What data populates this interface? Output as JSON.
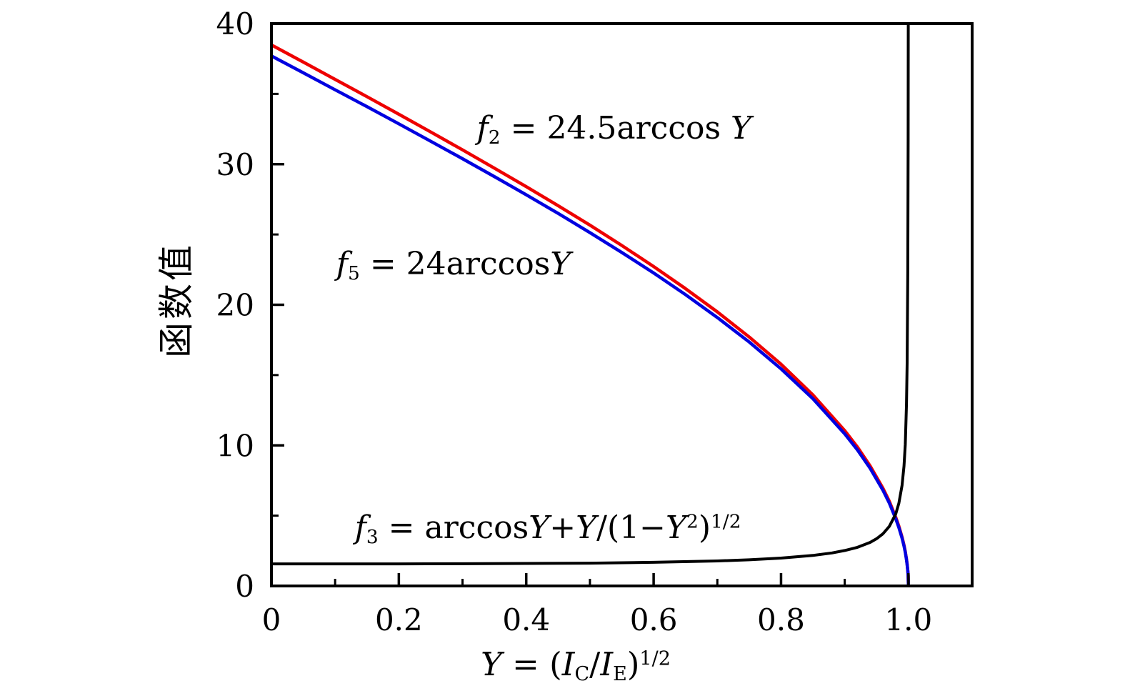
{
  "figure": {
    "background": "#ffffff",
    "axis_color": "#000000"
  },
  "chart_data": {
    "type": "line",
    "title": "",
    "xlabel_plain": "Y = (I_C / I_E)^1/2",
    "ylabel": "函数值",
    "xlim": [
      0,
      1.1
    ],
    "ylim": [
      0,
      40
    ],
    "grid": false,
    "legend": "none (curves labeled by inline annotations)",
    "xticks": {
      "major": [
        0,
        0.2,
        0.4,
        0.6,
        0.8,
        1.0
      ],
      "labels": [
        "0",
        "0.2",
        "0.4",
        "0.6",
        "0.8",
        "1.0"
      ],
      "minor": [
        0.1,
        0.3,
        0.5,
        0.7,
        0.9
      ]
    },
    "yticks": {
      "major": [
        0,
        10,
        20,
        30,
        40
      ],
      "labels": [
        "0",
        "10",
        "20",
        "30",
        "40"
      ],
      "minor": [
        5,
        15,
        25,
        35
      ]
    },
    "series": [
      {
        "name": "f2",
        "formula": "f2 = 24.5 arccos Y",
        "color": "#ee0000",
        "width": 4.5,
        "x": [
          0,
          0.05,
          0.1,
          0.15,
          0.2,
          0.25,
          0.3,
          0.35,
          0.4,
          0.45,
          0.5,
          0.55,
          0.6,
          0.65,
          0.7,
          0.75,
          0.8,
          0.85,
          0.9,
          0.92,
          0.94,
          0.96,
          0.97,
          0.98,
          0.985,
          0.99,
          0.993,
          0.995,
          0.997,
          0.998,
          0.999,
          0.9995,
          1.0
        ],
        "y": [
          38.48,
          37.26,
          36.03,
          34.8,
          33.55,
          32.29,
          31.02,
          29.72,
          28.4,
          27.05,
          25.66,
          24.22,
          22.72,
          21.15,
          19.49,
          17.71,
          15.77,
          13.59,
          11.05,
          9.87,
          8.53,
          6.95,
          6.02,
          4.89,
          4.25,
          3.47,
          2.9,
          2.45,
          1.9,
          1.55,
          1.1,
          0.78,
          0
        ]
      },
      {
        "name": "f5",
        "formula": "f5 = 24 arccos Y",
        "color": "#0000e0",
        "width": 4.5,
        "x": [
          0,
          0.05,
          0.1,
          0.15,
          0.2,
          0.25,
          0.3,
          0.35,
          0.4,
          0.45,
          0.5,
          0.55,
          0.6,
          0.65,
          0.7,
          0.75,
          0.8,
          0.85,
          0.9,
          0.92,
          0.94,
          0.96,
          0.97,
          0.98,
          0.985,
          0.99,
          0.993,
          0.995,
          0.997,
          0.998,
          0.999,
          0.9995,
          1.0
        ],
        "y": [
          37.7,
          36.5,
          35.29,
          34.09,
          32.87,
          31.63,
          30.39,
          29.12,
          27.82,
          26.5,
          25.13,
          23.72,
          22.26,
          20.72,
          19.09,
          17.35,
          15.44,
          13.32,
          10.82,
          9.67,
          8.36,
          6.81,
          5.89,
          4.79,
          4.16,
          3.4,
          2.84,
          2.4,
          1.86,
          1.52,
          1.07,
          0.76,
          0
        ]
      },
      {
        "name": "f3",
        "formula": "f3 = arccos Y + Y/(1−Y^2)^1/2",
        "color": "#000000",
        "width": 4,
        "x": [
          0,
          0.1,
          0.2,
          0.3,
          0.4,
          0.5,
          0.6,
          0.7,
          0.75,
          0.8,
          0.85,
          0.88,
          0.9,
          0.92,
          0.94,
          0.95,
          0.96,
          0.97,
          0.98,
          0.985,
          0.99,
          0.993,
          0.995,
          0.997,
          0.998,
          0.999,
          0.9995,
          0.9997
        ],
        "y": [
          1.57,
          1.57,
          1.57,
          1.58,
          1.6,
          1.62,
          1.68,
          1.78,
          1.86,
          1.98,
          2.17,
          2.35,
          2.52,
          2.75,
          3.1,
          3.36,
          3.71,
          4.24,
          5.12,
          5.88,
          7.16,
          8.53,
          10.06,
          12.96,
          15.85,
          22.39,
          31.64,
          40.84
        ]
      }
    ],
    "annotations": [
      {
        "name": "annotation-f2",
        "plain": "f2 = 24.5arccos Y",
        "x": 0.538,
        "y": 32.5,
        "segments": [
          {
            "t": "f",
            "s": "i"
          },
          {
            "t": "2",
            "s": "sub"
          },
          {
            "t": " = 24.5arccos",
            "s": "r"
          },
          {
            "t": " ",
            "s": "r"
          },
          {
            "t": "Y",
            "s": "i"
          }
        ]
      },
      {
        "name": "annotation-f5",
        "plain": "f5 = 24arccosY",
        "x": 0.286,
        "y": 22.8,
        "segments": [
          {
            "t": "f",
            "s": "i"
          },
          {
            "t": "5",
            "s": "sub"
          },
          {
            "t": " = 24arccos",
            "s": "r"
          },
          {
            "t": "Y",
            "s": "i"
          }
        ]
      },
      {
        "name": "annotation-f3",
        "plain": "f3 = arccosY+Y/(1−Y^2)^1/2",
        "x": 0.434,
        "y": 4.05,
        "segments": [
          {
            "t": "f",
            "s": "i"
          },
          {
            "t": "3",
            "s": "sub"
          },
          {
            "t": " = arccos",
            "s": "r"
          },
          {
            "t": "Y",
            "s": "i"
          },
          {
            "t": "+",
            "s": "r"
          },
          {
            "t": "Y",
            "s": "i"
          },
          {
            "t": "/(1−",
            "s": "r"
          },
          {
            "t": "Y",
            "s": "i"
          },
          {
            "t": "2",
            "s": "sup"
          },
          {
            "t": ")",
            "s": "r"
          },
          {
            "t": "1/2",
            "s": "sup"
          }
        ]
      }
    ],
    "xlabel_segments": [
      {
        "t": "Y",
        "s": "i"
      },
      {
        "t": " = (",
        "s": "r"
      },
      {
        "t": "I",
        "s": "i"
      },
      {
        "t": "C",
        "s": "sub"
      },
      {
        "t": "/",
        "s": "r"
      },
      {
        "t": "I",
        "s": "i"
      },
      {
        "t": "E",
        "s": "sub"
      },
      {
        "t": ")",
        "s": "r"
      },
      {
        "t": "1/2",
        "s": "sup"
      }
    ]
  }
}
